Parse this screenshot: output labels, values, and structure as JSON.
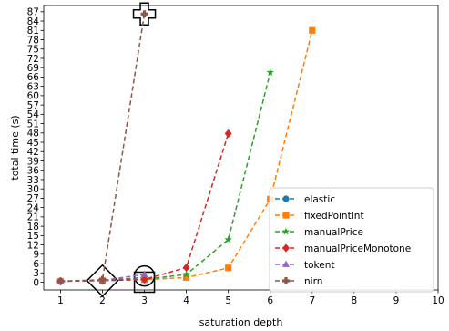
{
  "chart_data": {
    "type": "line",
    "xlabel": "saturation depth",
    "ylabel": "total time (s)",
    "xlim": [
      0.6,
      10
    ],
    "ylim": [
      -2.5,
      89
    ],
    "x_ticks": [
      "1",
      "2",
      "3",
      "4",
      "5",
      "6",
      "7",
      "8",
      "9",
      "10"
    ],
    "y_ticks": [
      "0",
      "3",
      "6",
      "9",
      "12",
      "15",
      "18",
      "21",
      "24",
      "27",
      "30",
      "33",
      "36",
      "39",
      "42",
      "45",
      "48",
      "51",
      "54",
      "57",
      "60",
      "63",
      "66",
      "69",
      "72",
      "75",
      "78",
      "81",
      "84",
      "87"
    ],
    "grid": false,
    "legend_position": "lower right",
    "series": [
      {
        "name": "elastic",
        "color": "#1f77b4",
        "marker": "circle",
        "x": [
          1,
          2,
          3
        ],
        "y": [
          0.3,
          0.6,
          1.5
        ]
      },
      {
        "name": "fixedPointInt",
        "color": "#ff7f0e",
        "marker": "square",
        "x": [
          1,
          2,
          3,
          4,
          5,
          6,
          7
        ],
        "y": [
          0.3,
          0.5,
          0.8,
          1.5,
          4.6,
          26.7,
          81.0
        ]
      },
      {
        "name": "manualPrice",
        "color": "#2ca02c",
        "marker": "star",
        "x": [
          1,
          2,
          3,
          4,
          5,
          6
        ],
        "y": [
          0.3,
          0.5,
          0.9,
          2.5,
          13.7,
          67.5
        ]
      },
      {
        "name": "manualPriceMonotone",
        "color": "#d62728",
        "marker": "diamond",
        "x": [
          1,
          2,
          3,
          4,
          5
        ],
        "y": [
          0.3,
          0.5,
          0.9,
          4.7,
          47.8
        ]
      },
      {
        "name": "tokent",
        "color": "#9467bd",
        "marker": "triangle",
        "x": [
          1,
          2,
          3
        ],
        "y": [
          0.3,
          0.6,
          2.5
        ]
      },
      {
        "name": "nirn",
        "color": "#8c564b",
        "marker": "plus",
        "x": [
          1,
          2,
          3
        ],
        "y": [
          0.3,
          0.8,
          86.3
        ]
      }
    ],
    "annotations": [
      {
        "type": "square",
        "x": 3,
        "y": 0
      },
      {
        "type": "circle",
        "x": 3,
        "y": 2
      },
      {
        "type": "diamond",
        "x": 2,
        "y": 0.5
      },
      {
        "type": "cross",
        "x": 3,
        "y": 86.3
      }
    ]
  }
}
